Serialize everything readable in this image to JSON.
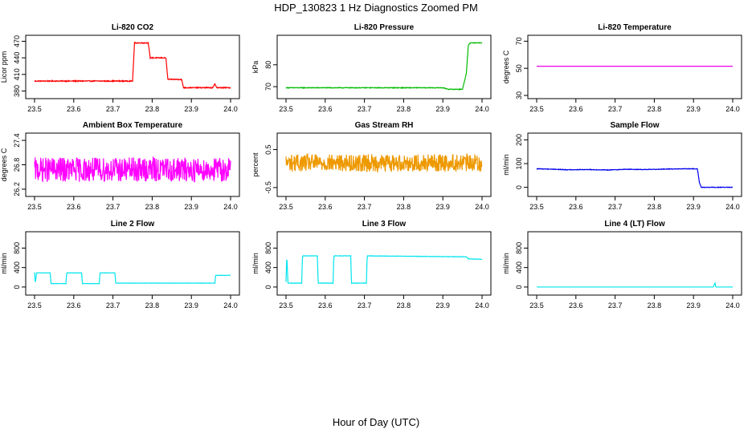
{
  "title": "HDP_130823  1 Hz Diagnostics Zoomed PM",
  "xlabel": "Hour of Day (UTC)",
  "chart_data": [
    {
      "type": "line",
      "title": "Li-820 CO2",
      "xlabel": "",
      "ylabel": "Licor ppm",
      "color": "#ff0000",
      "xlim": [
        23.5,
        24.0
      ],
      "xticks": [
        "23.5",
        "23.6",
        "23.7",
        "23.8",
        "23.9",
        "24.0"
      ],
      "ylim": [
        372,
        475
      ],
      "yticks": [
        {
          "v": 380,
          "label": "380"
        },
        {
          "v": 410,
          "label": "410"
        },
        {
          "v": 440,
          "label": "440"
        },
        {
          "v": 470,
          "label": "470"
        }
      ],
      "x": [
        23.5,
        23.6,
        23.7,
        23.75,
        23.755,
        23.79,
        23.795,
        23.835,
        23.84,
        23.875,
        23.88,
        23.955,
        23.96,
        23.965,
        24.0
      ],
      "y": [
        398,
        398,
        398,
        398,
        467,
        467,
        440,
        440,
        401,
        401,
        386,
        386,
        393,
        386,
        386
      ],
      "noise": 0.8
    },
    {
      "type": "line",
      "title": "Li-820 Pressure",
      "xlabel": "",
      "ylabel": "kPa",
      "color": "#00bb00",
      "xlim": [
        23.5,
        24.0
      ],
      "xticks": [
        "23.5",
        "23.6",
        "23.7",
        "23.8",
        "23.9",
        "24.0"
      ],
      "ylim": [
        66,
        92
      ],
      "yticks": [
        {
          "v": 70,
          "label": "70"
        },
        {
          "v": 80,
          "label": "80"
        }
      ],
      "x": [
        23.5,
        23.7,
        23.9,
        23.915,
        23.95,
        23.96,
        23.965,
        23.97,
        24.0
      ],
      "y": [
        69.5,
        69.5,
        69.5,
        68.8,
        68.8,
        76,
        89,
        90,
        90
      ],
      "noise": 0.15
    },
    {
      "type": "line",
      "title": "Li-820 Temperature",
      "xlabel": "",
      "ylabel": "degrees C",
      "color": "#ee00ee",
      "xlim": [
        23.5,
        24.0
      ],
      "xticks": [
        "23.5",
        "23.6",
        "23.7",
        "23.8",
        "23.9",
        "24.0"
      ],
      "ylim": [
        30,
        72
      ],
      "yticks": [
        {
          "v": 30,
          "label": "30"
        },
        {
          "v": 50,
          "label": "50"
        },
        {
          "v": 70,
          "label": "70"
        }
      ],
      "x": [
        23.5,
        24.0
      ],
      "y": [
        51.5,
        51.5
      ],
      "noise": 0
    },
    {
      "type": "line",
      "title": "Ambient Box Temperature",
      "xlabel": "",
      "ylabel": "degrees C",
      "color": "#ff00ff",
      "xlim": [
        23.5,
        24.0
      ],
      "xticks": [
        "23.5",
        "23.6",
        "23.7",
        "23.8",
        "23.9",
        "24.0"
      ],
      "ylim": [
        26.1,
        27.5
      ],
      "yticks": [
        {
          "v": 26.2,
          "label": "26.2"
        },
        {
          "v": 26.8,
          "label": "26.8"
        },
        {
          "v": 27.4,
          "label": "27.4"
        }
      ],
      "x": [
        23.5,
        24.0
      ],
      "y": [
        26.68,
        26.68
      ],
      "noise": 0.3
    },
    {
      "type": "line",
      "title": "Gas Stream RH",
      "xlabel": "",
      "ylabel": "percent",
      "color": "#ee9900",
      "xlim": [
        23.5,
        24.0
      ],
      "xticks": [
        "23.5",
        "23.6",
        "23.7",
        "23.8",
        "23.9",
        "24.0"
      ],
      "ylim": [
        -0.65,
        0.85
      ],
      "yticks": [
        {
          "v": -0.5,
          "label": "-0.5"
        },
        {
          "v": 0.5,
          "label": "0.5"
        }
      ],
      "x": [
        23.5,
        24.0
      ],
      "y": [
        0.15,
        0.15
      ],
      "noise": 0.23
    },
    {
      "type": "line",
      "title": "Sample Flow",
      "xlabel": "",
      "ylabel": "ml/min",
      "color": "#0000ee",
      "xlim": [
        23.5,
        24.0
      ],
      "xticks": [
        "23.5",
        "23.6",
        "23.7",
        "23.8",
        "23.9",
        "24.0"
      ],
      "ylim": [
        -25,
        215
      ],
      "yticks": [
        {
          "v": 0,
          "label": "0"
        },
        {
          "v": 100,
          "label": "100"
        },
        {
          "v": 200,
          "label": "200"
        }
      ],
      "x": [
        23.5,
        23.53,
        23.58,
        23.63,
        23.68,
        23.73,
        23.78,
        23.83,
        23.88,
        23.91,
        23.915,
        23.92,
        24.0
      ],
      "y": [
        78,
        77,
        74,
        75,
        73,
        76,
        75,
        77,
        78,
        78,
        20,
        0,
        0
      ],
      "noise": 1.2
    },
    {
      "type": "line",
      "title": "Line 2 Flow",
      "xlabel": "",
      "ylabel": "ml/min",
      "color": "#00e5ee",
      "xlim": [
        23.5,
        24.0
      ],
      "xticks": [
        "23.5",
        "23.6",
        "23.7",
        "23.8",
        "23.9",
        "24.0"
      ],
      "ylim": [
        -100,
        1070
      ],
      "yticks": [
        {
          "v": 0,
          "label": "0"
        },
        {
          "v": 400,
          "label": "400"
        },
        {
          "v": 800,
          "label": "800"
        }
      ],
      "x": [
        23.5,
        23.502,
        23.505,
        23.54,
        23.542,
        23.58,
        23.582,
        23.62,
        23.622,
        23.665,
        23.667,
        23.705,
        23.707,
        23.96,
        23.962,
        24.0
      ],
      "y": [
        300,
        80,
        290,
        290,
        70,
        70,
        290,
        290,
        70,
        70,
        290,
        290,
        80,
        80,
        240,
        240
      ],
      "noise": 3
    },
    {
      "type": "line",
      "title": "Line 3 Flow",
      "xlabel": "",
      "ylabel": "ml/min",
      "color": "#00e5ee",
      "xlim": [
        23.5,
        24.0
      ],
      "xticks": [
        "23.5",
        "23.6",
        "23.7",
        "23.8",
        "23.9",
        "24.0"
      ],
      "ylim": [
        -100,
        1070
      ],
      "yticks": [
        {
          "v": 0,
          "label": "0"
        },
        {
          "v": 400,
          "label": "400"
        },
        {
          "v": 800,
          "label": "800"
        }
      ],
      "x": [
        23.5,
        23.502,
        23.505,
        23.54,
        23.542,
        23.58,
        23.582,
        23.62,
        23.622,
        23.665,
        23.667,
        23.705,
        23.707,
        23.96,
        23.965,
        24.0
      ],
      "y": [
        100,
        640,
        80,
        80,
        640,
        640,
        80,
        80,
        640,
        640,
        80,
        80,
        640,
        620,
        580,
        570
      ],
      "noise": 4
    },
    {
      "type": "line",
      "title": "Line 4 (LT) Flow",
      "xlabel": "",
      "ylabel": "ml/min",
      "color": "#00e5ee",
      "xlim": [
        23.5,
        24.0
      ],
      "xticks": [
        "23.5",
        "23.6",
        "23.7",
        "23.8",
        "23.9",
        "24.0"
      ],
      "ylim": [
        -100,
        1070
      ],
      "yticks": [
        {
          "v": 0,
          "label": "0"
        },
        {
          "v": 400,
          "label": "400"
        },
        {
          "v": 800,
          "label": "800"
        }
      ],
      "x": [
        23.5,
        23.95,
        23.955,
        23.957,
        23.96,
        24.0
      ],
      "y": [
        0,
        0,
        80,
        0,
        0,
        0
      ],
      "noise": 0
    }
  ]
}
